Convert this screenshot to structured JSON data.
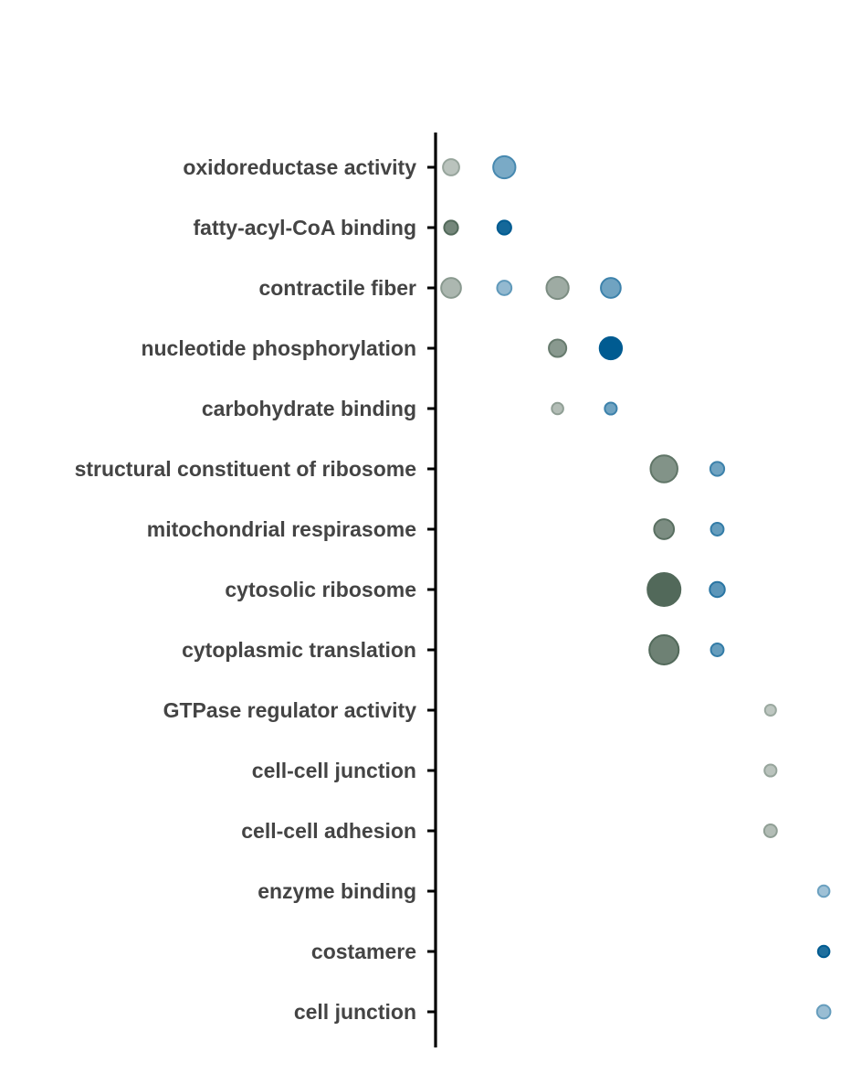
{
  "chart_data": {
    "type": "scatter",
    "title": "",
    "xlabel": "",
    "ylabel": "",
    "grid": false,
    "legend": "none",
    "colors": {
      "green": "#52695A",
      "blue": "#005B91",
      "axis": "#000000",
      "label": "#444444"
    },
    "categories": [
      "oxidoreductase activity",
      "fatty-acyl-CoA binding",
      "contractile fiber",
      "nucleotide phosphorylation",
      "carbohydrate binding",
      "structural constituent of ribosome",
      "mitochondrial respirasome",
      "cytosolic ribosome",
      "cytoplasmic translation",
      "GTPase regulator activity",
      "cell-cell junction",
      "cell-cell adhesion",
      "enzyme binding",
      "costamere",
      "cell junction"
    ],
    "x_positions": 8,
    "points": [
      {
        "x": 1,
        "category": "oxidoreductase activity",
        "color": "green",
        "size": 0.3,
        "intensity": 0.25
      },
      {
        "x": 2,
        "category": "oxidoreductase activity",
        "color": "blue",
        "size": 0.55,
        "intensity": 0.4
      },
      {
        "x": 1,
        "category": "fatty-acyl-CoA binding",
        "color": "green",
        "size": 0.2,
        "intensity": 0.75
      },
      {
        "x": 2,
        "category": "fatty-acyl-CoA binding",
        "color": "blue",
        "size": 0.2,
        "intensity": 0.9
      },
      {
        "x": 1,
        "category": "contractile fiber",
        "color": "green",
        "size": 0.45,
        "intensity": 0.35
      },
      {
        "x": 2,
        "category": "contractile fiber",
        "color": "blue",
        "size": 0.22,
        "intensity": 0.28
      },
      {
        "x": 3,
        "category": "contractile fiber",
        "color": "green",
        "size": 0.55,
        "intensity": 0.45
      },
      {
        "x": 4,
        "category": "contractile fiber",
        "color": "blue",
        "size": 0.45,
        "intensity": 0.45
      },
      {
        "x": 3,
        "category": "nucleotide phosphorylation",
        "color": "green",
        "size": 0.35,
        "intensity": 0.6
      },
      {
        "x": 4,
        "category": "nucleotide phosphorylation",
        "color": "blue",
        "size": 0.55,
        "intensity": 1.0
      },
      {
        "x": 3,
        "category": "carbohydrate binding",
        "color": "green",
        "size": 0.1,
        "intensity": 0.3
      },
      {
        "x": 4,
        "category": "carbohydrate binding",
        "color": "blue",
        "size": 0.12,
        "intensity": 0.45
      },
      {
        "x": 5,
        "category": "structural constituent of ribosome",
        "color": "green",
        "size": 0.75,
        "intensity": 0.65
      },
      {
        "x": 6,
        "category": "structural constituent of ribosome",
        "color": "blue",
        "size": 0.2,
        "intensity": 0.45
      },
      {
        "x": 5,
        "category": "mitochondrial respirasome",
        "color": "green",
        "size": 0.45,
        "intensity": 0.7
      },
      {
        "x": 6,
        "category": "mitochondrial respirasome",
        "color": "blue",
        "size": 0.15,
        "intensity": 0.5
      },
      {
        "x": 5,
        "category": "cytosolic ribosome",
        "color": "green",
        "size": 1.0,
        "intensity": 1.0
      },
      {
        "x": 6,
        "category": "cytosolic ribosome",
        "color": "blue",
        "size": 0.25,
        "intensity": 0.55
      },
      {
        "x": 5,
        "category": "cytoplasmic translation",
        "color": "green",
        "size": 0.85,
        "intensity": 0.8
      },
      {
        "x": 6,
        "category": "cytoplasmic translation",
        "color": "blue",
        "size": 0.15,
        "intensity": 0.5
      },
      {
        "x": 7,
        "category": "GTPase regulator activity",
        "color": "green",
        "size": 0.08,
        "intensity": 0.22
      },
      {
        "x": 7,
        "category": "cell-cell junction",
        "color": "green",
        "size": 0.12,
        "intensity": 0.25
      },
      {
        "x": 7,
        "category": "cell-cell adhesion",
        "color": "green",
        "size": 0.15,
        "intensity": 0.3
      },
      {
        "x": 8,
        "category": "enzyme binding",
        "color": "blue",
        "size": 0.1,
        "intensity": 0.22
      },
      {
        "x": 8,
        "category": "costamere",
        "color": "blue",
        "size": 0.1,
        "intensity": 0.85
      },
      {
        "x": 8,
        "category": "cell junction",
        "color": "blue",
        "size": 0.18,
        "intensity": 0.25
      }
    ]
  }
}
